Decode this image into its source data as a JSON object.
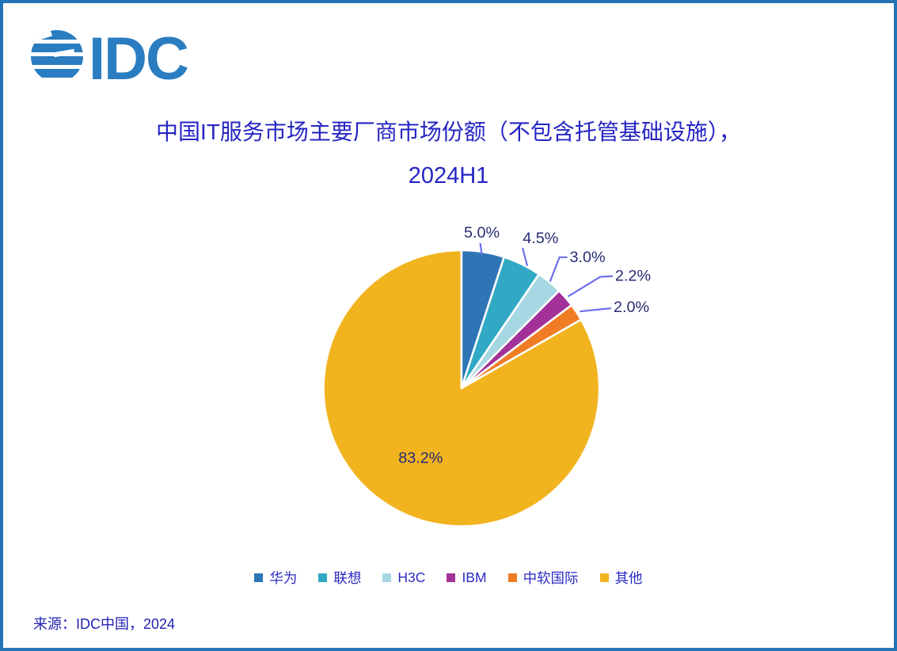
{
  "logo": {
    "text": "IDC"
  },
  "title": {
    "line1": "中国IT服务市场主要厂商市场份额（不包含托管基础设施），",
    "line2": "2024H1"
  },
  "chart_data": {
    "type": "pie",
    "title": "中国IT服务市场主要厂商市场份额（不包含托管基础设施），2024H1",
    "categories": [
      "华为",
      "联想",
      "H3C",
      "IBM",
      "中软国际",
      "其他"
    ],
    "values": [
      5.0,
      4.5,
      3.0,
      2.2,
      2.0,
      83.2
    ],
    "labels": [
      "5.0%",
      "4.5%",
      "3.0%",
      "2.2%",
      "2.0%",
      "83.2%"
    ],
    "colors": [
      "#2E75B6",
      "#31A9C4",
      "#A6D8E4",
      "#A23298",
      "#F07D26",
      "#F1B41F"
    ],
    "unit": "percent",
    "start_angle": "12-o-clock",
    "direction": "clockwise",
    "slice_border_color": "#FFFFFF",
    "leader_line_color": "#6E6EEB",
    "data_label_color": "#262C72",
    "legend_position": "bottom"
  },
  "legend": {
    "items": [
      {
        "label": "华为",
        "color": "#2E75B6"
      },
      {
        "label": "联想",
        "color": "#31A9C4"
      },
      {
        "label": "H3C",
        "color": "#A6D8E4"
      },
      {
        "label": "IBM",
        "color": "#A23298"
      },
      {
        "label": "中软国际",
        "color": "#F07D26"
      },
      {
        "label": "其他",
        "color": "#F1B41F"
      }
    ]
  },
  "source": {
    "text": "来源：IDC中国，2024"
  },
  "theme": {
    "border_color": "#2374B5",
    "logo_color": "#2A7DC0",
    "title_color": "#2525C3",
    "legend_text_color": "#2A2AC4",
    "source_text_color": "#2222B4",
    "background": "#FFFFFF"
  }
}
